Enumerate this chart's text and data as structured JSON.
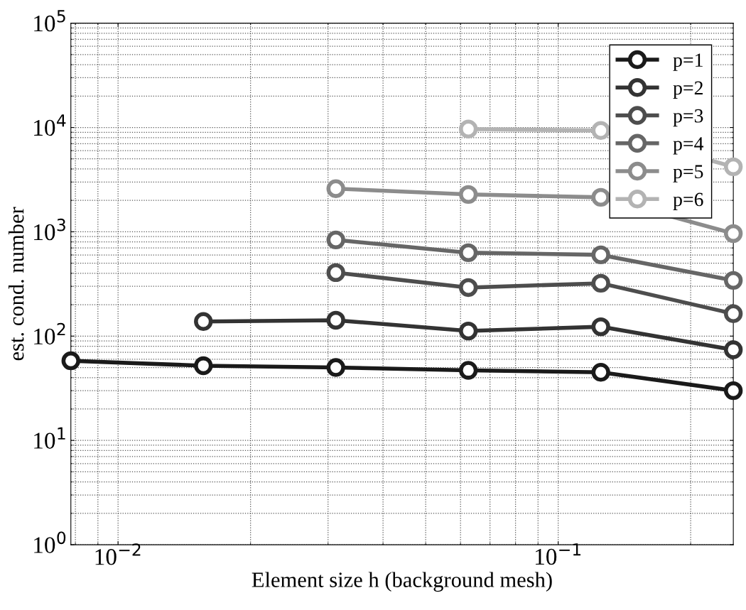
{
  "chart_data": {
    "type": "line",
    "xlabel": "Element size h (background mesh)",
    "ylabel": "est. cond. number",
    "log": "xy",
    "grid": true,
    "legend": "top right",
    "marker": "circle",
    "line_style": "solid",
    "xlim": [
      0.0078125,
      0.25
    ],
    "ylim": [
      1,
      100000
    ],
    "xticks": [
      {
        "value": 0.01,
        "label": "10$^{−2}$"
      },
      {
        "value": 0.1,
        "label": "10$^{−1}$"
      }
    ],
    "yticks": [
      {
        "value": 1,
        "label": "10$^{0}$"
      },
      {
        "value": 10,
        "label": "10$^{1}$"
      },
      {
        "value": 100,
        "label": "10$^{2}$"
      },
      {
        "value": 1000,
        "label": "10$^{3}$"
      },
      {
        "value": 10000,
        "label": "10$^{4}$"
      },
      {
        "value": 100000,
        "label": "10$^{5}$"
      }
    ],
    "x": [
      0.0078125,
      0.015625,
      0.03125,
      0.0625,
      0.125,
      0.25
    ],
    "series": [
      {
        "name": "p=1",
        "color": "#1a1a1a",
        "values": [
          58,
          52,
          50,
          47,
          45,
          30
        ]
      },
      {
        "name": "p=2",
        "color": "#333333",
        "values": [
          null,
          138,
          142,
          112,
          123,
          74
        ]
      },
      {
        "name": "p=3",
        "color": "#4d4d4d",
        "values": [
          null,
          null,
          406,
          292,
          321,
          164
        ]
      },
      {
        "name": "p=4",
        "color": "#666666",
        "values": [
          null,
          null,
          836,
          630,
          601,
          342
        ]
      },
      {
        "name": "p=5",
        "color": "#8c8c8c",
        "values": [
          null,
          null,
          2590,
          2280,
          2140,
          963
        ]
      },
      {
        "name": "p=6",
        "color": "#b3b3b3",
        "values": [
          null,
          null,
          null,
          9660,
          9360,
          4200
        ]
      }
    ]
  }
}
